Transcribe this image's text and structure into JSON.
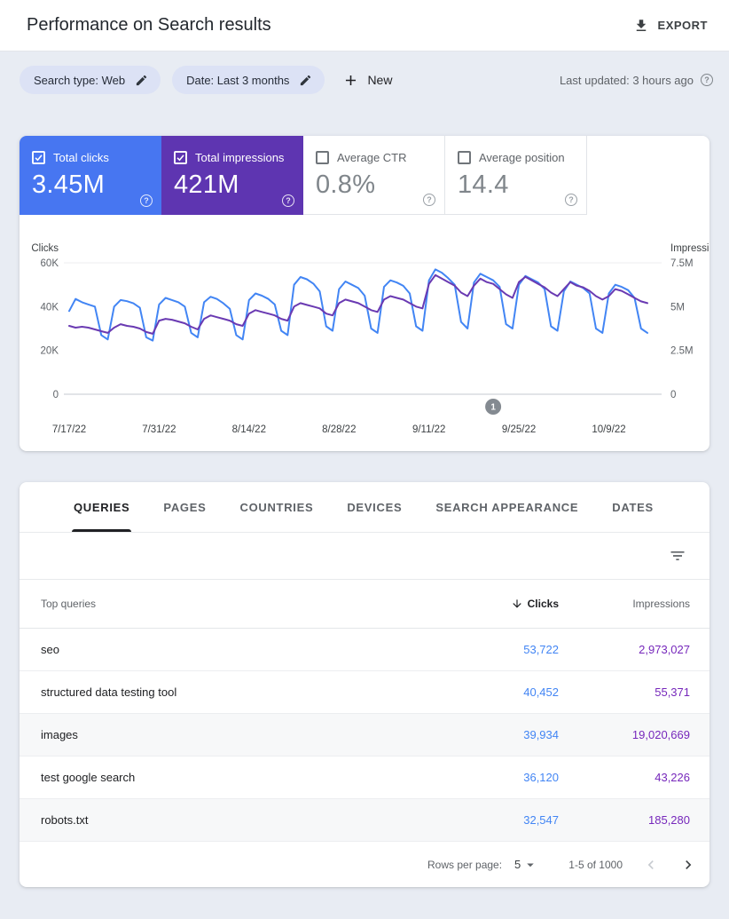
{
  "header": {
    "title": "Performance on Search results",
    "export_label": "EXPORT"
  },
  "filters": {
    "search_type_chip": "Search type: Web",
    "date_chip": "Date: Last 3 months",
    "new_label": "New",
    "last_updated": "Last updated: 3 hours ago"
  },
  "icons": {
    "help_glyph": "?"
  },
  "metrics": [
    {
      "label": "Total clicks",
      "value": "3.45M",
      "selected": true,
      "color": "#4776f1"
    },
    {
      "label": "Total impressions",
      "value": "421M",
      "selected": true,
      "color": "#5e35b1"
    },
    {
      "label": "Average CTR",
      "value": "0.8%",
      "selected": false,
      "color": "#ffffff"
    },
    {
      "label": "Average position",
      "value": "14.4",
      "selected": false,
      "color": "#ffffff"
    }
  ],
  "chart_data": {
    "type": "line",
    "left_axis": {
      "label": "Clicks",
      "max": 60000,
      "tick_labels": [
        "0",
        "20K",
        "40K",
        "60K"
      ]
    },
    "right_axis": {
      "label": "Impressions",
      "max": 7500000,
      "tick_labels": [
        "0",
        "2.5M",
        "5M",
        "7.5M"
      ]
    },
    "x_ticks": [
      {
        "day": 0,
        "label": "7/17/22"
      },
      {
        "day": 14,
        "label": "7/31/22"
      },
      {
        "day": 28,
        "label": "8/14/22"
      },
      {
        "day": 42,
        "label": "8/28/22"
      },
      {
        "day": 56,
        "label": "9/11/22"
      },
      {
        "day": 70,
        "label": "9/25/22"
      },
      {
        "day": 84,
        "label": "10/9/22"
      }
    ],
    "annotation_marker": {
      "label": "1",
      "day_index": 66
    },
    "series": [
      {
        "name": "Clicks",
        "axis": "left",
        "color": "#4285f4",
        "values": [
          38000,
          43500,
          42000,
          41000,
          40000,
          27000,
          25000,
          40000,
          43000,
          42500,
          41500,
          39500,
          26000,
          24500,
          41000,
          44000,
          43000,
          42000,
          40000,
          28000,
          26000,
          42000,
          44500,
          43500,
          41500,
          39000,
          27000,
          25000,
          43000,
          46000,
          45000,
          43500,
          41000,
          29000,
          27000,
          50000,
          53500,
          52500,
          50500,
          47000,
          31000,
          29000,
          48000,
          51500,
          50000,
          48500,
          45000,
          30000,
          28000,
          49000,
          52000,
          51000,
          49500,
          46000,
          31000,
          29000,
          52000,
          57000,
          55500,
          53000,
          50000,
          33000,
          30000,
          51000,
          55000,
          53500,
          52000,
          49000,
          32000,
          30000,
          50000,
          54000,
          52500,
          51000,
          48000,
          31000,
          29000,
          47000,
          51500,
          50000,
          48500,
          46000,
          30000,
          28000,
          46000,
          50000,
          49000,
          47500,
          44000,
          30000,
          28000
        ]
      },
      {
        "name": "Impressions",
        "axis": "right",
        "color": "#6a3ab2",
        "values": [
          3900000,
          3800000,
          3850000,
          3800000,
          3700000,
          3600000,
          3500000,
          3800000,
          4000000,
          3900000,
          3850000,
          3750000,
          3550000,
          3450000,
          4200000,
          4300000,
          4250000,
          4150000,
          4050000,
          3850000,
          3700000,
          4300000,
          4500000,
          4400000,
          4300000,
          4200000,
          4000000,
          3900000,
          4600000,
          4800000,
          4700000,
          4600000,
          4500000,
          4300000,
          4200000,
          5000000,
          5200000,
          5100000,
          5000000,
          4900000,
          4600000,
          4500000,
          5200000,
          5400000,
          5300000,
          5200000,
          5000000,
          4800000,
          4700000,
          5400000,
          5600000,
          5500000,
          5400000,
          5200000,
          5000000,
          4900000,
          6300000,
          6800000,
          6600000,
          6400000,
          6200000,
          5800000,
          5600000,
          6200000,
          6600000,
          6400000,
          6300000,
          6000000,
          5700000,
          5500000,
          6400000,
          6700000,
          6500000,
          6300000,
          6100000,
          5800000,
          5600000,
          6000000,
          6400000,
          6200000,
          6100000,
          5900000,
          5600000,
          5400000,
          5600000,
          6000000,
          5900000,
          5700000,
          5500000,
          5300000,
          5200000
        ]
      }
    ]
  },
  "table": {
    "tabs": [
      "QUERIES",
      "PAGES",
      "COUNTRIES",
      "DEVICES",
      "SEARCH APPEARANCE",
      "DATES"
    ],
    "active_tab": "QUERIES",
    "columns": {
      "queries": "Top queries",
      "clicks": "Clicks",
      "impressions": "Impressions"
    },
    "sorted_column": "Clicks",
    "sort_direction": "desc",
    "cell_colors": {
      "clicks": "#4285f4",
      "impressions": "#7627bb"
    },
    "rows": [
      {
        "query": "seo",
        "clicks": "53,722",
        "impressions": "2,973,027"
      },
      {
        "query": "structured data testing tool",
        "clicks": "40,452",
        "impressions": "55,371"
      },
      {
        "query": "images",
        "clicks": "39,934",
        "impressions": "19,020,669"
      },
      {
        "query": "test google search",
        "clicks": "36,120",
        "impressions": "43,226"
      },
      {
        "query": "robots.txt",
        "clicks": "32,547",
        "impressions": "185,280"
      }
    ],
    "pagination": {
      "rows_per_page_label": "Rows per page:",
      "rows_per_page": "5",
      "range": "1-5 of 1000"
    }
  }
}
